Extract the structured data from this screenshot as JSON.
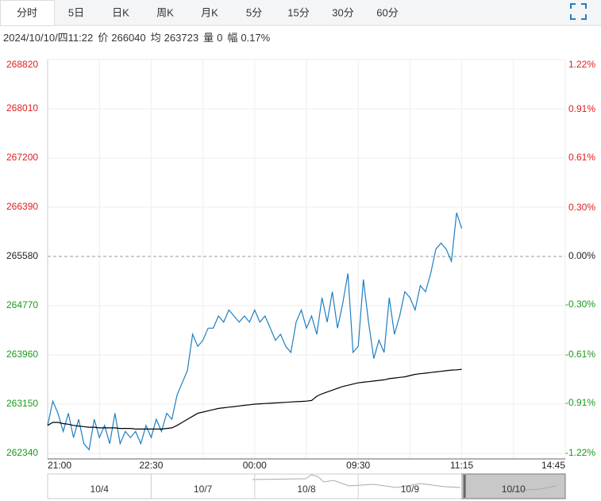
{
  "tabs": [
    "分时",
    "5日",
    "日K",
    "周K",
    "月K",
    "5分",
    "15分",
    "30分",
    "60分"
  ],
  "info": {
    "datetime": "2024/10/10/四11:22",
    "fields": [
      {
        "label": "价",
        "value": "266040"
      },
      {
        "label": "均",
        "value": "263723"
      },
      {
        "label": "量",
        "value": "0"
      },
      {
        "label": "幅",
        "value": "0.17%"
      }
    ]
  },
  "navigator": [
    "10/4",
    "10/7",
    "10/8",
    "10/9",
    "10/10"
  ],
  "chart_data": {
    "type": "line",
    "xlim": [
      0,
      100
    ],
    "xticks": [
      {
        "value": 0,
        "label": "21:00"
      },
      {
        "value": 20,
        "label": "22:30"
      },
      {
        "value": 40,
        "label": "00:00"
      },
      {
        "value": 60,
        "label": "09:30"
      },
      {
        "value": 80,
        "label": "11:15"
      },
      {
        "value": 100,
        "label": "14:45"
      }
    ],
    "ylim": [
      262340,
      268820
    ],
    "yticks": [
      268820,
      268010,
      267200,
      266390,
      265580,
      264770,
      263960,
      263150,
      262340
    ],
    "y2lim": [
      -1.22,
      1.22
    ],
    "y2ticks": [
      {
        "value": 1.22,
        "label": "1.22%"
      },
      {
        "value": 0.91,
        "label": "0.91%"
      },
      {
        "value": 0.61,
        "label": "0.61%"
      },
      {
        "value": 0.3,
        "label": "0.30%"
      },
      {
        "value": 0,
        "label": "0.00%"
      },
      {
        "value": -0.3,
        "label": "-0.30%"
      },
      {
        "value": -0.61,
        "label": "-0.61%"
      },
      {
        "value": -0.91,
        "label": "-0.91%"
      },
      {
        "value": -1.22,
        "label": "-1.22%"
      }
    ],
    "grid": true,
    "series": [
      {
        "name": "价",
        "color": "#1f7fc0",
        "values": [
          262800,
          263200,
          263000,
          262700,
          263000,
          262600,
          262900,
          262500,
          262400,
          262900,
          262600,
          262800,
          262500,
          263000,
          262500,
          262700,
          262600,
          262700,
          262500,
          262800,
          262600,
          262900,
          262700,
          263000,
          262900,
          263300,
          263500,
          263700,
          264300,
          264100,
          264200,
          264400,
          264400,
          264600,
          264500,
          264700,
          264600,
          264500,
          264600,
          264500,
          264700,
          264500,
          264600,
          264400,
          264200,
          264300,
          264100,
          264000,
          264500,
          264700,
          264400,
          264600,
          264300,
          264900,
          264500,
          265000,
          264400,
          264800,
          265300,
          264000,
          264100,
          265200,
          264500,
          263900,
          264200,
          264000,
          264900,
          264300,
          264600,
          265000,
          264900,
          264700,
          265100,
          265000,
          265300,
          265700,
          265800,
          265700,
          265500,
          266300,
          266040
        ]
      },
      {
        "name": "均",
        "color": "#000000",
        "values": [
          262800,
          262850,
          262850,
          262830,
          262820,
          262800,
          262790,
          262780,
          262770,
          262770,
          262760,
          262760,
          262760,
          262760,
          262750,
          262750,
          262750,
          262740,
          262740,
          262740,
          262740,
          262740,
          262740,
          262750,
          262760,
          262800,
          262850,
          262900,
          262950,
          263000,
          263020,
          263040,
          263060,
          263080,
          263090,
          263100,
          263110,
          263120,
          263130,
          263140,
          263150,
          263155,
          263160,
          263165,
          263170,
          263175,
          263180,
          263185,
          263190,
          263195,
          263200,
          263210,
          263280,
          263320,
          263350,
          263380,
          263410,
          263440,
          263460,
          263480,
          263500,
          263510,
          263520,
          263530,
          263540,
          263550,
          263570,
          263580,
          263590,
          263600,
          263620,
          263640,
          263650,
          263660,
          263670,
          263680,
          263690,
          263700,
          263710,
          263715,
          263723
        ]
      }
    ]
  }
}
